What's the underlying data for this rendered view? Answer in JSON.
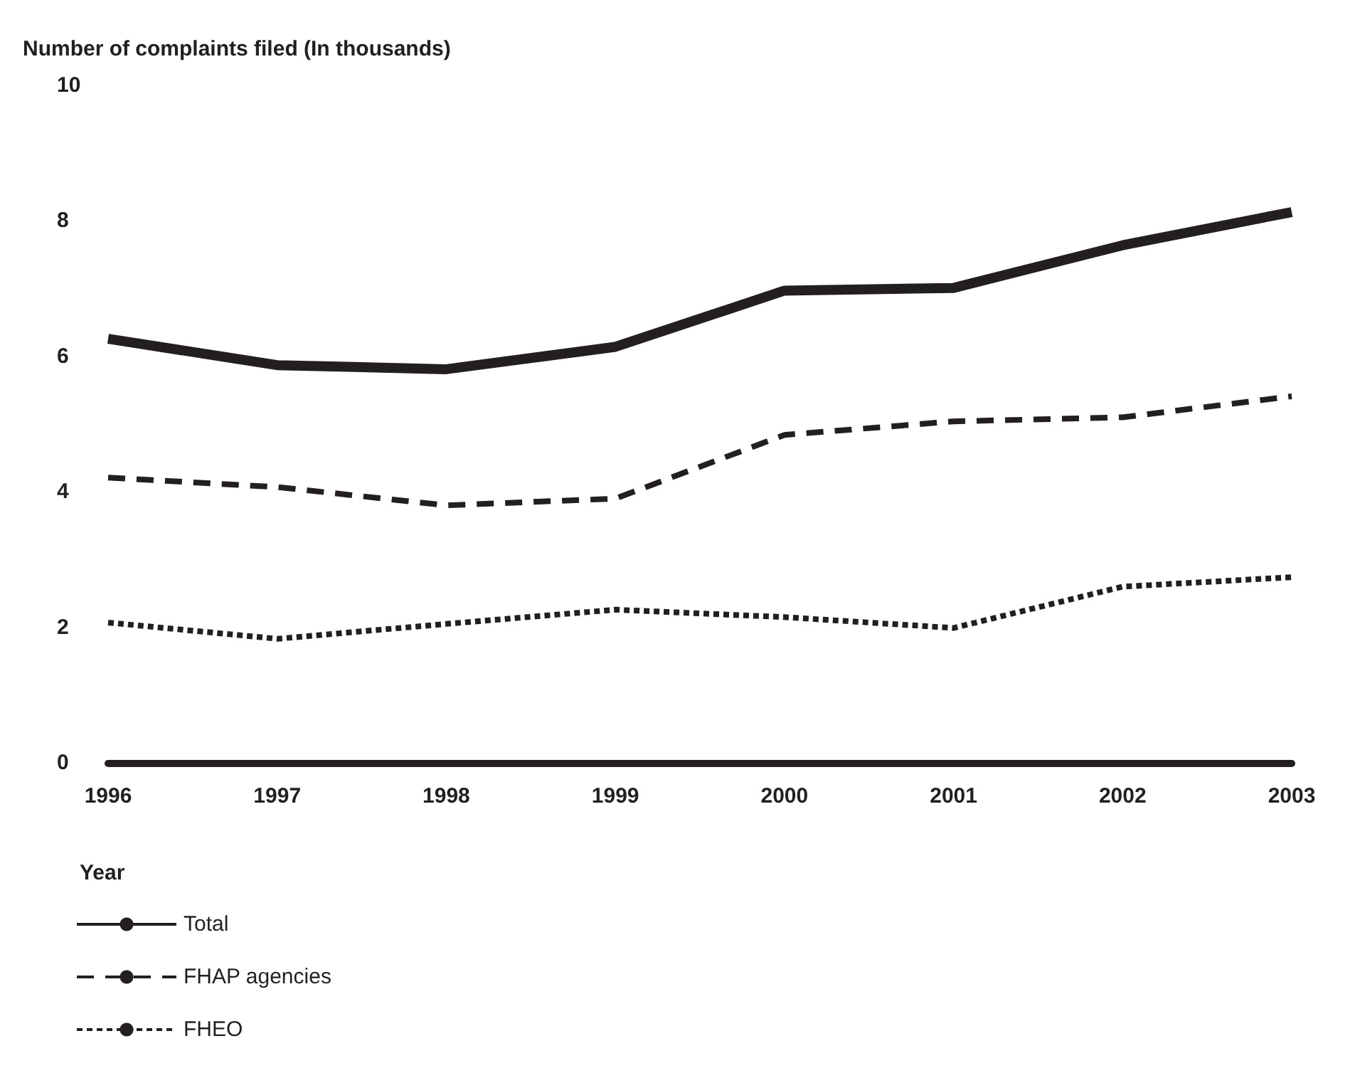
{
  "chart_data": {
    "type": "line",
    "ylabel": "Number of complaints filed (In thousands)",
    "xlabel": "Year",
    "categories": [
      "1996",
      "1997",
      "1998",
      "1999",
      "2000",
      "2001",
      "2002",
      "2003"
    ],
    "series": [
      {
        "name": "Total",
        "color": "#231f20",
        "line_style": "solid",
        "values": [
          6.26,
          5.87,
          5.81,
          6.14,
          6.97,
          7.01,
          7.64,
          8.13
        ]
      },
      {
        "name": "FHAP agencies",
        "color": "#231f20",
        "line_style": "dashed",
        "values": [
          4.21,
          4.07,
          3.8,
          3.9,
          4.84,
          5.04,
          5.1,
          5.41
        ]
      },
      {
        "name": "FHEO",
        "color": "#231f20",
        "line_style": "dotted",
        "values": [
          2.07,
          1.83,
          2.05,
          2.26,
          2.15,
          1.99,
          2.6,
          2.74
        ]
      }
    ],
    "ylim": [
      0,
      10
    ],
    "yticks": [
      0,
      2,
      4,
      6,
      8,
      10
    ],
    "grid": false,
    "legend": "bottom left",
    "marker": "none"
  }
}
